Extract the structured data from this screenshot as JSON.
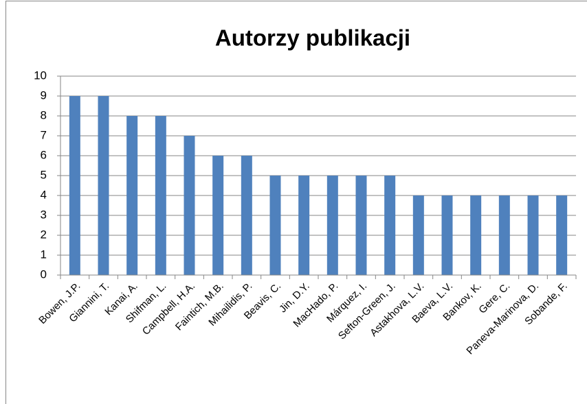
{
  "chart_data": {
    "type": "bar",
    "title": "Autorzy publikacji",
    "categories": [
      "Bowen, J.P.",
      "Giannini, T.",
      "Kanai, A.",
      "Shifman, L.",
      "Campbell, H.A.",
      "Faintich, M.B.",
      "Mihailidis, P.",
      "Beavis, C.",
      "Jin, D.Y.",
      "MacHado, P.",
      "Márquez, I.",
      "Sefton-Green, J.",
      "Astakhova, L.V.",
      "Baeva, L.V.",
      "Bankov, K.",
      "Gere, C.",
      "Paneva-Marinova, D.",
      "Sobande, F."
    ],
    "values": [
      9,
      9,
      8,
      8,
      7,
      6,
      6,
      5,
      5,
      5,
      5,
      5,
      4,
      4,
      4,
      4,
      4,
      4
    ],
    "color": "#4f81bd",
    "ylim": [
      0,
      10
    ],
    "yticks": [
      0,
      1,
      2,
      3,
      4,
      5,
      6,
      7,
      8,
      9,
      10
    ],
    "grid": true
  }
}
